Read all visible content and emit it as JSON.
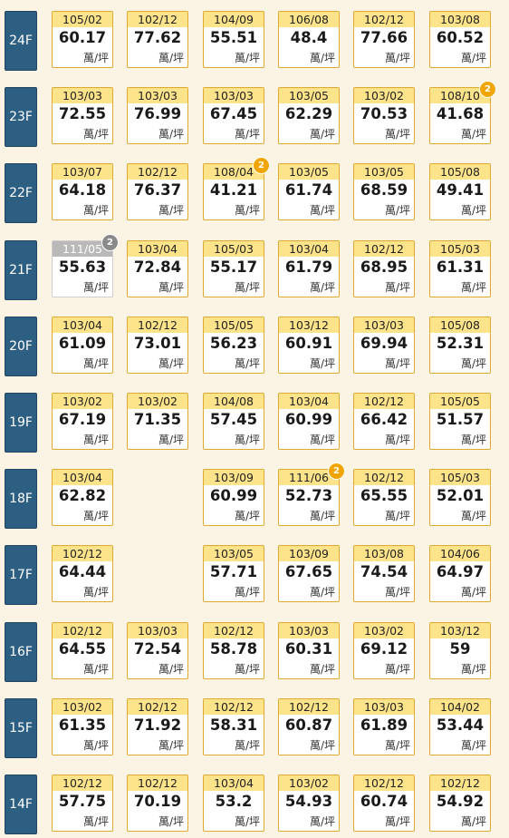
{
  "unit_label": "萬/坪",
  "floors": [
    {
      "label": "24F",
      "units": [
        {
          "date": "105/02",
          "price": "60.17"
        },
        {
          "date": "102/12",
          "price": "77.62"
        },
        {
          "date": "104/09",
          "price": "55.51"
        },
        {
          "date": "106/08",
          "price": "48.4"
        },
        {
          "date": "102/12",
          "price": "77.66"
        },
        {
          "date": "103/08",
          "price": "60.52"
        }
      ]
    },
    {
      "label": "23F",
      "units": [
        {
          "date": "103/03",
          "price": "72.55"
        },
        {
          "date": "103/03",
          "price": "76.99"
        },
        {
          "date": "103/03",
          "price": "67.45"
        },
        {
          "date": "103/05",
          "price": "62.29"
        },
        {
          "date": "103/02",
          "price": "70.53"
        },
        {
          "date": "108/10",
          "price": "41.68",
          "badge": "2"
        }
      ]
    },
    {
      "label": "22F",
      "units": [
        {
          "date": "103/07",
          "price": "64.18"
        },
        {
          "date": "102/12",
          "price": "76.37"
        },
        {
          "date": "108/04",
          "price": "41.21",
          "badge": "2"
        },
        {
          "date": "103/05",
          "price": "61.74"
        },
        {
          "date": "103/05",
          "price": "68.59"
        },
        {
          "date": "105/08",
          "price": "49.41"
        }
      ]
    },
    {
      "label": "21F",
      "units": [
        {
          "date": "111/05",
          "price": "55.63",
          "badge": "2",
          "muted": true
        },
        {
          "date": "103/04",
          "price": "72.84"
        },
        {
          "date": "105/03",
          "price": "55.17"
        },
        {
          "date": "103/04",
          "price": "61.79"
        },
        {
          "date": "102/12",
          "price": "68.95"
        },
        {
          "date": "105/03",
          "price": "61.31"
        }
      ]
    },
    {
      "label": "20F",
      "units": [
        {
          "date": "103/04",
          "price": "61.09"
        },
        {
          "date": "102/12",
          "price": "73.01"
        },
        {
          "date": "105/05",
          "price": "56.23"
        },
        {
          "date": "103/12",
          "price": "60.91"
        },
        {
          "date": "103/03",
          "price": "69.94"
        },
        {
          "date": "105/08",
          "price": "52.31"
        }
      ]
    },
    {
      "label": "19F",
      "units": [
        {
          "date": "103/02",
          "price": "67.19"
        },
        {
          "date": "103/02",
          "price": "71.35"
        },
        {
          "date": "104/08",
          "price": "57.45"
        },
        {
          "date": "103/04",
          "price": "60.99"
        },
        {
          "date": "102/12",
          "price": "66.42"
        },
        {
          "date": "105/05",
          "price": "51.57"
        }
      ]
    },
    {
      "label": "18F",
      "units": [
        {
          "date": "103/04",
          "price": "62.82"
        },
        null,
        {
          "date": "103/09",
          "price": "60.99"
        },
        {
          "date": "111/06",
          "price": "52.73",
          "badge": "2"
        },
        {
          "date": "102/12",
          "price": "65.55"
        },
        {
          "date": "105/03",
          "price": "52.01"
        }
      ]
    },
    {
      "label": "17F",
      "units": [
        {
          "date": "102/12",
          "price": "64.44"
        },
        null,
        {
          "date": "103/05",
          "price": "57.71"
        },
        {
          "date": "103/09",
          "price": "67.65"
        },
        {
          "date": "103/08",
          "price": "74.54"
        },
        {
          "date": "104/06",
          "price": "64.97"
        }
      ]
    },
    {
      "label": "16F",
      "units": [
        {
          "date": "102/12",
          "price": "64.55"
        },
        {
          "date": "103/03",
          "price": "72.54"
        },
        {
          "date": "102/12",
          "price": "58.78"
        },
        {
          "date": "103/03",
          "price": "60.31"
        },
        {
          "date": "103/02",
          "price": "69.12"
        },
        {
          "date": "103/12",
          "price": "59"
        }
      ]
    },
    {
      "label": "15F",
      "units": [
        {
          "date": "103/02",
          "price": "61.35"
        },
        {
          "date": "102/12",
          "price": "71.92"
        },
        {
          "date": "102/12",
          "price": "58.31"
        },
        {
          "date": "102/12",
          "price": "60.87"
        },
        {
          "date": "103/03",
          "price": "61.89"
        },
        {
          "date": "104/02",
          "price": "53.44"
        }
      ]
    },
    {
      "label": "14F",
      "units": [
        {
          "date": "102/12",
          "price": "57.75"
        },
        {
          "date": "102/12",
          "price": "70.19"
        },
        {
          "date": "103/04",
          "price": "53.2"
        },
        {
          "date": "103/02",
          "price": "54.93"
        },
        {
          "date": "102/12",
          "price": "60.74"
        },
        {
          "date": "102/12",
          "price": "54.92"
        }
      ]
    }
  ]
}
